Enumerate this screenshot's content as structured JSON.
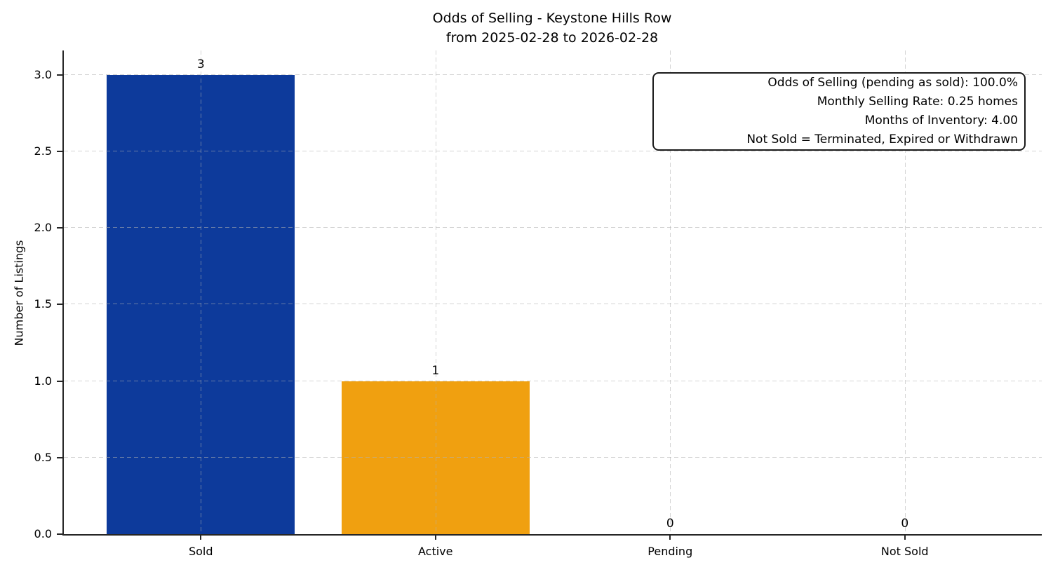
{
  "chart_data": {
    "type": "bar",
    "title": "Odds of Selling - Keystone Hills Row",
    "subtitle": "from 2025-02-28 to 2026-02-28",
    "xlabel": "",
    "ylabel": "Number of Listings",
    "categories": [
      "Sold",
      "Active",
      "Pending",
      "Not Sold"
    ],
    "values": [
      3,
      1,
      0,
      0
    ],
    "value_labels": [
      "3",
      "1",
      "0",
      "0"
    ],
    "bar_colors": [
      "#0d3a9b",
      "#f0a010",
      null,
      null
    ],
    "ylim": [
      0,
      3.16
    ],
    "yticks": [
      0,
      0.5,
      1,
      1.5,
      2,
      2.5,
      3
    ],
    "ytick_labels": [
      "0.0",
      "0.5",
      "1.0",
      "1.5",
      "2.0",
      "2.5",
      "3.0"
    ],
    "grid": true,
    "legend": "none",
    "annotation": {
      "position": "top-right",
      "lines": [
        "Odds of Selling (pending as sold): 100.0%",
        "Monthly Selling Rate: 0.25 homes",
        "Months of Inventory: 4.00",
        "Not Sold = Terminated, Expired or Withdrawn"
      ]
    },
    "colors": {
      "sold_bar": "#0d3a9b",
      "active_bar": "#f0a010",
      "axis": "#262626",
      "grid": "#d5d5d5",
      "text": "#000000",
      "annotation_border": "#1a1a1a",
      "annotation_bg": "#ffffff",
      "background": "#ffffff"
    }
  }
}
